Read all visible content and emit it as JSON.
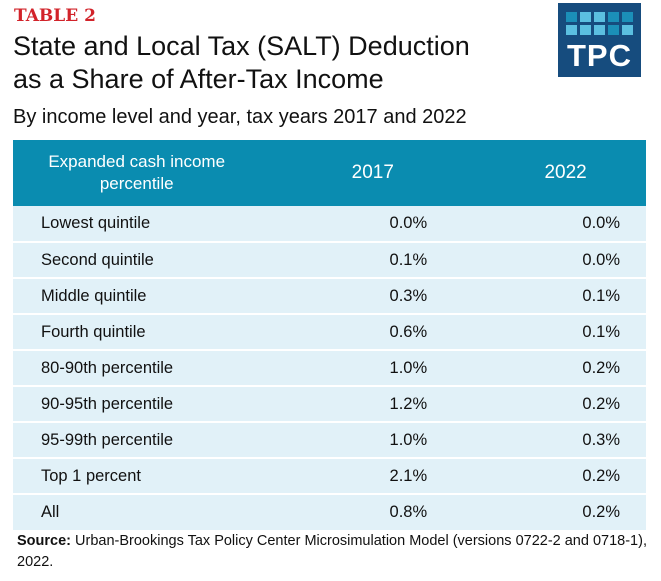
{
  "header": {
    "table_label": "TABLE 2",
    "title_line1": "State and Local Tax (SALT) Deduction",
    "title_line2": "as a Share of After-Tax Income",
    "subtitle": "By income level and year, tax years 2017 and 2022"
  },
  "logo": {
    "text": "TPC",
    "background_color": "#164c7e",
    "grid_colors": [
      "#1b8fb8",
      "#5bbfe0",
      "#5bbfe0",
      "#1b8fb8",
      "#1b8fb8",
      "#5bbfe0",
      "#5bbfe0",
      "#5bbfe0",
      "#1b8fb8",
      "#5bbfe0"
    ]
  },
  "table": {
    "header_color": "#0a8cb0",
    "row_color": "#e1f1f8",
    "columns": [
      "Expanded cash income percentile",
      "2017",
      "2022"
    ],
    "rows": [
      {
        "label": "Lowest quintile",
        "v2017": "0.0%",
        "v2022": "0.0%"
      },
      {
        "label": "Second quintile",
        "v2017": "0.1%",
        "v2022": "0.0%"
      },
      {
        "label": "Middle quintile",
        "v2017": "0.3%",
        "v2022": "0.1%"
      },
      {
        "label": "Fourth quintile",
        "v2017": "0.6%",
        "v2022": "0.1%"
      },
      {
        "label": "80-90th percentile",
        "v2017": "1.0%",
        "v2022": "0.2%"
      },
      {
        "label": "90-95th percentile",
        "v2017": "1.2%",
        "v2022": "0.2%"
      },
      {
        "label": "95-99th percentile",
        "v2017": "1.0%",
        "v2022": "0.3%"
      },
      {
        "label": "Top 1 percent",
        "v2017": "2.1%",
        "v2022": "0.2%"
      },
      {
        "label": "All",
        "v2017": "0.8%",
        "v2022": "0.2%"
      }
    ]
  },
  "footer": {
    "source_label": "Source:",
    "source_text": " Urban-Brookings Tax Policy Center Microsimulation Model (versions 0722-2 and 0718-1), 2022."
  }
}
